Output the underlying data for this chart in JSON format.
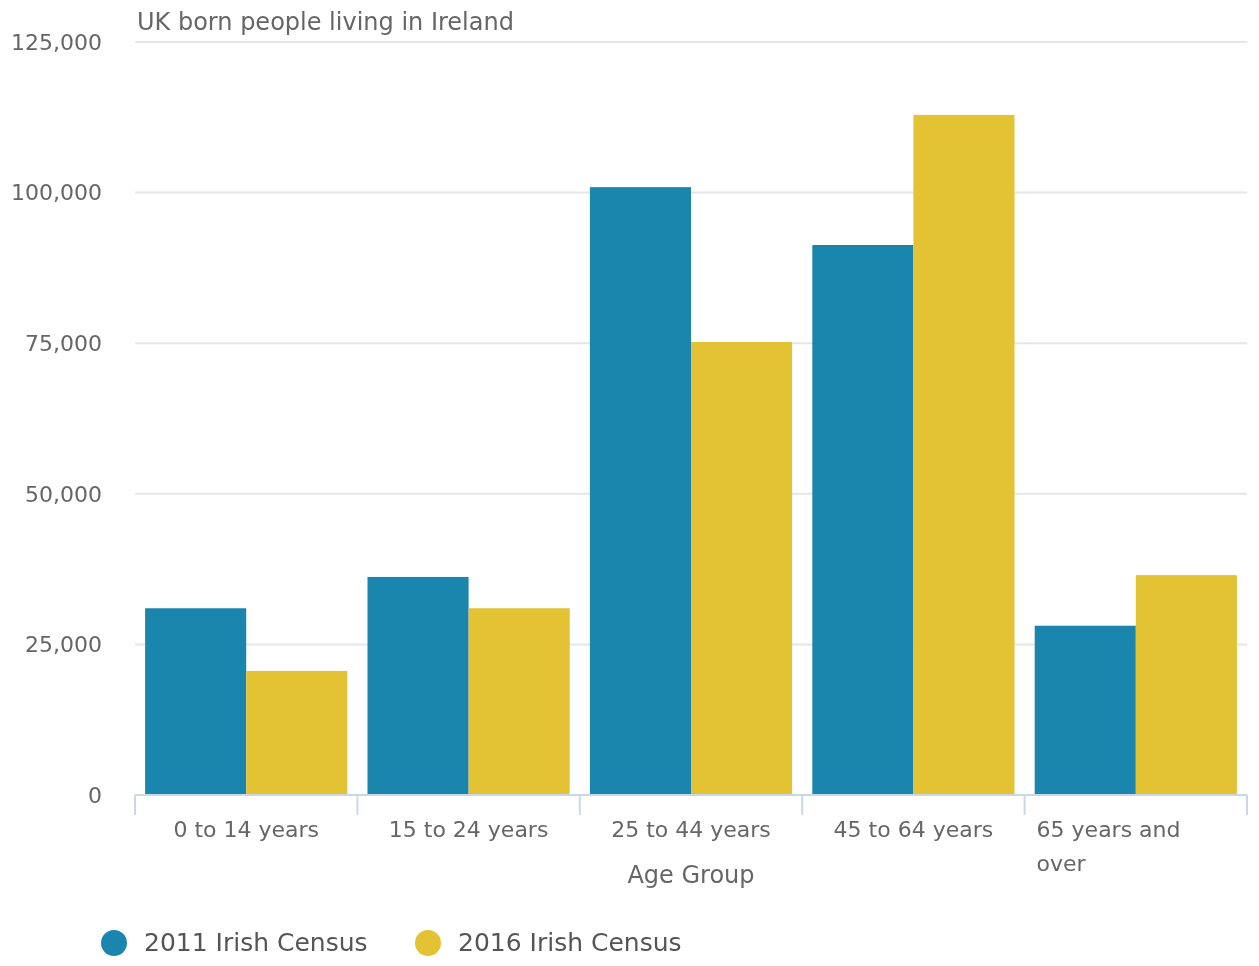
{
  "chart_data": {
    "type": "bar",
    "ylabel": "UK born people living in Ireland",
    "xlabel": "Age Group",
    "categories": [
      "0 to 14 years",
      "15 to 24 years",
      "25 to 44 years",
      "45 to 64 years",
      "65 years and over"
    ],
    "series": [
      {
        "name": "2011 Irish Census",
        "color": "#1a85ad",
        "values": [
          31000,
          36200,
          100900,
          91300,
          28100
        ]
      },
      {
        "name": "2016 Irish Census",
        "color": "#e3c234",
        "values": [
          20600,
          31000,
          75200,
          112900,
          36500
        ]
      }
    ],
    "ylim": [
      0,
      125000
    ],
    "yticks": [
      0,
      {
        "value": 25000,
        "label": "25,000"
      },
      {
        "value": 50000,
        "label": "50,000"
      },
      {
        "value": 75000,
        "label": "75,000"
      },
      {
        "value": 100000,
        "label": "100,000"
      },
      {
        "value": 125000,
        "label": "125,000"
      }
    ],
    "grid": "y",
    "legend": "bottom left"
  }
}
